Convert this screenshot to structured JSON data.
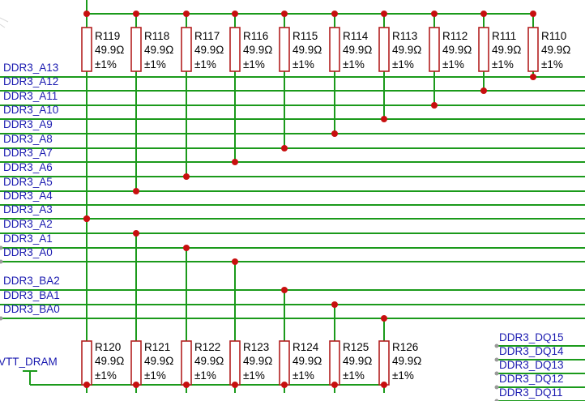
{
  "schematic": {
    "colors": {
      "wire": "#1b9a1b",
      "component": "#b32020",
      "junction": "#c80f0f",
      "net_label": "#1a1ab0",
      "text": "#000000"
    },
    "net_labels": [
      "DDR3_A13",
      "DDR3_A12",
      "DDR3_A11",
      "DDR3_A10",
      "DDR3_A9",
      "DDR3_A8",
      "DDR3_A7",
      "DDR3_A6",
      "DDR3_A5",
      "DDR3_A4",
      "DDR3_A3",
      "DDR3_A2",
      "DDR3_A1",
      "DDR3_A0",
      "DDR3_BA2",
      "DDR3_BA1",
      "DDR3_BA0"
    ],
    "power_label": "VTT_DRAM",
    "top_resistors": [
      {
        "ref": "R119",
        "value": "49.9Ω",
        "tol": "±1%"
      },
      {
        "ref": "R118",
        "value": "49.9Ω",
        "tol": "±1%"
      },
      {
        "ref": "R117",
        "value": "49.9Ω",
        "tol": "±1%"
      },
      {
        "ref": "R116",
        "value": "49.9Ω",
        "tol": "±1%"
      },
      {
        "ref": "R115",
        "value": "49.9Ω",
        "tol": "±1%"
      },
      {
        "ref": "R114",
        "value": "49.9Ω",
        "tol": "±1%"
      },
      {
        "ref": "R113",
        "value": "49.9Ω",
        "tol": "±1%"
      },
      {
        "ref": "R112",
        "value": "49.9Ω",
        "tol": "±1%"
      },
      {
        "ref": "R111",
        "value": "49.9Ω",
        "tol": "±1%"
      },
      {
        "ref": "R110",
        "value": "49.9Ω",
        "tol": "±1%"
      }
    ],
    "bottom_resistors": [
      {
        "ref": "R120",
        "value": "49.9Ω",
        "tol": "±1%"
      },
      {
        "ref": "R121",
        "value": "49.9Ω",
        "tol": "±1%"
      },
      {
        "ref": "R122",
        "value": "49.9Ω",
        "tol": "±1%"
      },
      {
        "ref": "R123",
        "value": "49.9Ω",
        "tol": "±1%"
      },
      {
        "ref": "R124",
        "value": "49.9Ω",
        "tol": "±1%"
      },
      {
        "ref": "R125",
        "value": "49.9Ω",
        "tol": "±1%"
      },
      {
        "ref": "R126",
        "value": "49.9Ω",
        "tol": "±1%"
      }
    ],
    "dq_labels": [
      "DDR3_DQ15",
      "DDR3_DQ14",
      "DDR3_DQ13",
      "DDR3_DQ12",
      "DDR3_DQ11"
    ]
  }
}
